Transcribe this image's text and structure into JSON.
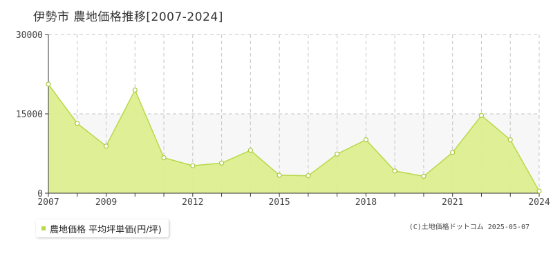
{
  "title": "伊勢市 農地価格推移[2007-2024]",
  "legend": {
    "label": "農地価格 平均坪単価(円/坪)"
  },
  "copyright": "(C)土地価格ドットコム 2025-05-07",
  "chart_data": {
    "type": "area",
    "title": "伊勢市 農地価格推移[2007-2024]",
    "x": [
      2007,
      2008,
      2009,
      2010,
      2011,
      2012,
      2013,
      2014,
      2015,
      2016,
      2017,
      2018,
      2019,
      2020,
      2021,
      2022,
      2023,
      2024
    ],
    "x_tick_labels": [
      "2007",
      "2009",
      "2012",
      "2015",
      "2018",
      "2021",
      "2024"
    ],
    "x_tick_values": [
      2007,
      2009,
      2012,
      2015,
      2018,
      2021,
      2024
    ],
    "y_tick_labels": [
      "0",
      "15000",
      "30000"
    ],
    "y_tick_values": [
      0,
      15000,
      30000
    ],
    "ylim": [
      0,
      30000
    ],
    "xlim": [
      2007,
      2024
    ],
    "series": [
      {
        "name": "農地価格 平均坪単価(円/坪)",
        "values": [
          20600,
          13200,
          8900,
          19500,
          6700,
          5200,
          5700,
          8100,
          3400,
          3300,
          7400,
          10100,
          4200,
          3200,
          7700,
          14700,
          10100,
          400
        ]
      }
    ],
    "colors": {
      "fill": "#dcee8f",
      "line": "#b8d94a",
      "marker_stroke": "#a8c83c",
      "shade": "#f7f7f7"
    },
    "grid": true,
    "legend_position": "bottom-left"
  }
}
